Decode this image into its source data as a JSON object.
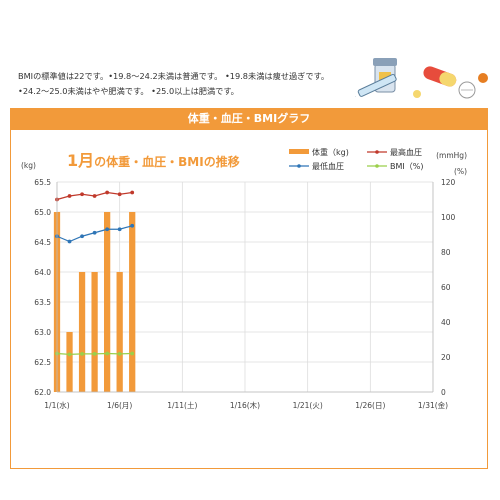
{
  "notes": {
    "line1": "BMIの標準値は22です。•19.8〜24.2未満は普通です。 •19.8未満は痩せ過ぎです。",
    "line2": "•24.2〜25.0未満はやや肥満です。 •25.0以上は肥満です。"
  },
  "banner_title": "体重・血圧・BMIグラフ",
  "illustration": {
    "icons": [
      "pill-bottle-icon",
      "syringe-icon",
      "capsule-icon",
      "pill-icon"
    ]
  },
  "colors": {
    "accent": "#f29a3a",
    "bar": "#f29a3a",
    "systolic": "#c0392b",
    "diastolic": "#2e75b6",
    "bmi": "#9bcf4a"
  },
  "chart_data": {
    "type": "bar+line",
    "title_prefix": "1月",
    "title_suffix": "の体重・血圧・BMIの推移",
    "left_unit": "(kg)",
    "right_unit_top": "(mmHg)",
    "right_unit_bottom": "(%)",
    "left_axis": {
      "min": 62.0,
      "max": 65.5,
      "step": 0.5,
      "tick_labels": [
        "62.0",
        "62.5",
        "63.0",
        "63.5",
        "64.0",
        "64.5",
        "65.0",
        "65.5"
      ]
    },
    "right_axis": {
      "min": 0,
      "max": 120,
      "step": 20,
      "tick_labels": [
        "0",
        "20",
        "40",
        "60",
        "80",
        "100",
        "120"
      ]
    },
    "x_range": [
      1,
      31
    ],
    "x_ticks": [
      {
        "day": 1,
        "label": "1/1(水)"
      },
      {
        "day": 6,
        "label": "1/6(月)"
      },
      {
        "day": 11,
        "label": "1/11(土)"
      },
      {
        "day": 16,
        "label": "1/16(木)"
      },
      {
        "day": 21,
        "label": "1/21(火)"
      },
      {
        "day": 26,
        "label": "1/26(日)"
      },
      {
        "day": 31,
        "label": "1/31(金)"
      }
    ],
    "grid": true,
    "legend": [
      {
        "name": "体重（kg)",
        "kind": "bar"
      },
      {
        "name": "最高血圧",
        "kind": "line"
      },
      {
        "name": "最低血圧",
        "kind": "line"
      },
      {
        "name": "BMI（%)",
        "kind": "line"
      }
    ],
    "series": [
      {
        "name": "体重（kg)",
        "axis": "left",
        "type": "bar",
        "days": [
          1,
          2,
          3,
          4,
          5,
          6,
          7
        ],
        "values": [
          65.0,
          63.0,
          64.0,
          64.0,
          65.0,
          64.0,
          65.0
        ]
      },
      {
        "name": "最高血圧",
        "axis": "right",
        "type": "line",
        "days": [
          1,
          2,
          3,
          4,
          5,
          6,
          7
        ],
        "values": [
          110,
          112,
          113,
          112,
          114,
          113,
          114
        ]
      },
      {
        "name": "最低血圧",
        "axis": "right",
        "type": "line",
        "days": [
          1,
          2,
          3,
          4,
          5,
          6,
          7
        ],
        "values": [
          89,
          86,
          89,
          91,
          93,
          93,
          95
        ]
      },
      {
        "name": "BMI（%)",
        "axis": "right",
        "type": "line",
        "days": [
          1,
          2,
          3,
          4,
          5,
          6,
          7
        ],
        "values": [
          22,
          21.5,
          21.8,
          21.8,
          22.0,
          21.8,
          22.0
        ]
      }
    ]
  }
}
